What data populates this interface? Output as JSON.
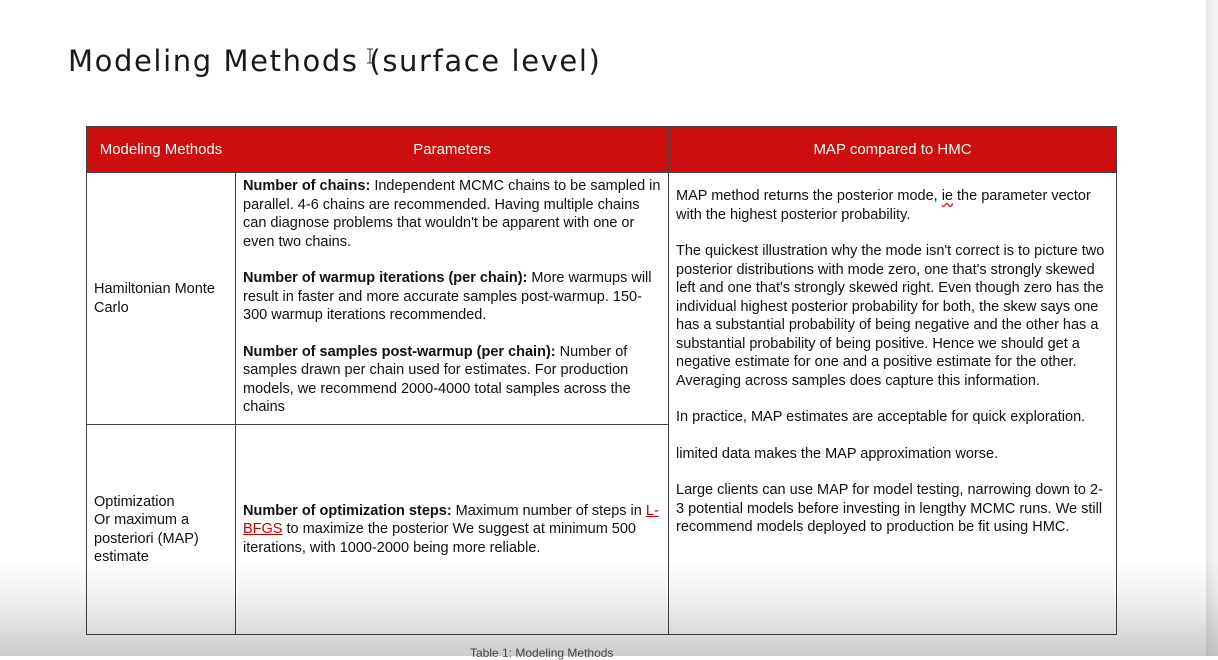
{
  "slide": {
    "title": "Modeling Methods (surface level)"
  },
  "table": {
    "headers": [
      "Modeling Methods",
      "Parameters",
      "MAP compared to HMC"
    ],
    "rows": [
      {
        "method": "Hamiltonian Monte Carlo",
        "params": [
          {
            "name": "Number of chains:",
            "text": " Independent MCMC chains to be sampled in parallel. 4-6 chains are recommended. Having multiple chains can diagnose problems that wouldn't be apparent with one or even two chains."
          },
          {
            "name": "Number of warmup iterations (per chain):",
            "text": " More warmups will result in faster and more accurate samples post-warmup. 150-300 warmup iterations recommended."
          },
          {
            "name": "Number of samples post-warmup (per chain):",
            "text": " Number of samples drawn per chain used for estimates. For production models, we recommend 2000-4000 total samples across the chains"
          }
        ]
      },
      {
        "method_lines": [
          "Optimization",
          "Or maximum a posteriori (MAP) estimate"
        ],
        "param_name": "Number of optimization steps:",
        "param_text_1": " Maximum number of steps in ",
        "param_link": "L-BFGS",
        "param_text_2": " to maximize the posterior We suggest at minimum 500 iterations, with 1000-2000 being more reliable."
      }
    ],
    "comparison": {
      "p1_a": "MAP method returns the posterior mode, ",
      "p1_ie": "ie",
      "p1_b": " the parameter vector with the highest posterior probability.",
      "p2": "The quickest illustration why the mode isn't correct is to picture two posterior distributions with mode zero, one that's strongly skewed left and one that's strongly skewed right. Even though zero has the individual highest posterior probability for both, the skew says one has a substantial probability of being negative and the other has a substantial probability of being positive. Hence we should get a negative estimate for one and a positive estimate for the other. Averaging across samples does capture this information.",
      "p3": "In practice, MAP estimates are acceptable for quick exploration.",
      "p4": "limited data makes the MAP approximation worse.",
      "p5": "Large clients can use MAP for model testing, narrowing down to 2-3 potential models before investing in lengthy MCMC runs. We still recommend models deployed to production be fit using HMC."
    }
  },
  "caption": "Table 1: Modeling Methods",
  "colors": {
    "header_bg": "#cc0e0e",
    "header_text": "#ffffff",
    "link": "#c00000"
  },
  "icons": {
    "cursor": "text-cursor-icon"
  }
}
